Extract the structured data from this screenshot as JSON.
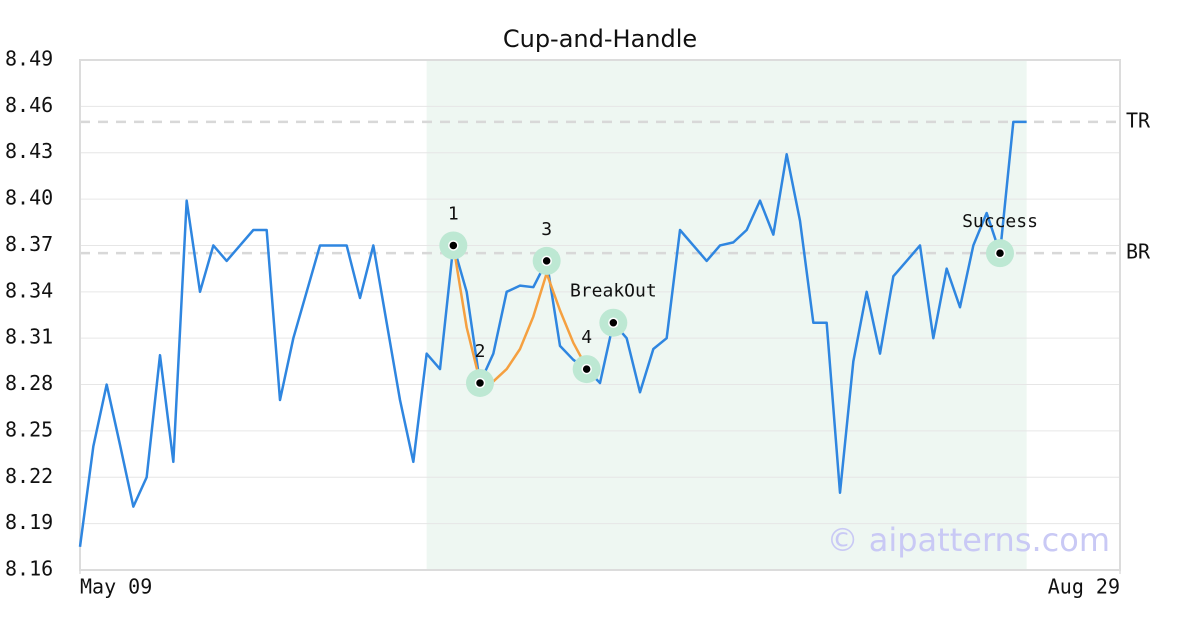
{
  "chart_data": {
    "type": "line",
    "title": "Cup-and-Handle",
    "watermark": "© aipatterns.com",
    "xlim": [
      0,
      78
    ],
    "xticks": [
      {
        "value": 0,
        "label": "May 09"
      },
      {
        "value": 78,
        "label": "Aug 29"
      }
    ],
    "ylim": [
      8.16,
      8.49
    ],
    "yticks": [
      8.16,
      8.19,
      8.22,
      8.25,
      8.28,
      8.31,
      8.34,
      8.37,
      {
        "value": 8.4,
        "label": "8.40"
      },
      8.43,
      8.46,
      8.49
    ],
    "grid": true,
    "highlight": [
      26,
      71
    ],
    "hlines": [
      {
        "value": 8.45,
        "label": "TR"
      },
      {
        "value": 8.365,
        "label": "BR"
      }
    ],
    "series": [
      {
        "color": "#2f86e0",
        "values": [
          8.175,
          8.24,
          8.28,
          8.241,
          8.201,
          8.22,
          8.299,
          8.23,
          8.399,
          8.34,
          8.37,
          8.36,
          8.37,
          8.38,
          8.38,
          8.27,
          8.31,
          8.34,
          8.37,
          8.37,
          8.37,
          8.336,
          8.37,
          8.32,
          8.27,
          8.23,
          8.3,
          8.29,
          8.37,
          8.34,
          8.281,
          8.3,
          8.34,
          8.344,
          8.343,
          8.36,
          8.305,
          8.296,
          8.29,
          8.281,
          8.32,
          8.31,
          8.275,
          8.303,
          8.31,
          8.38,
          8.37,
          8.36,
          8.37,
          8.372,
          8.38,
          8.399,
          8.377,
          8.429,
          8.386,
          8.32,
          8.32,
          8.21,
          8.295,
          8.34,
          8.3,
          8.35,
          8.36,
          8.37,
          8.31,
          8.355,
          8.33,
          8.37,
          8.391,
          8.365,
          8.45,
          8.45
        ]
      },
      {
        "color": "#f5a040",
        "values": [
          null,
          null,
          null,
          null,
          null,
          null,
          null,
          null,
          null,
          null,
          null,
          null,
          null,
          null,
          null,
          null,
          null,
          null,
          null,
          null,
          null,
          null,
          null,
          null,
          null,
          null,
          null,
          null,
          8.37,
          8.317,
          8.282,
          8.282,
          8.29,
          8.303,
          8.324,
          8.352,
          8.328,
          8.307,
          8.291,
          null,
          null,
          null,
          null,
          null,
          null,
          null,
          null,
          null,
          null,
          null,
          null,
          null,
          null,
          null,
          null,
          null,
          null,
          null,
          null,
          null,
          null,
          null,
          null,
          null,
          null,
          null,
          null,
          null,
          null,
          null,
          null,
          null
        ]
      }
    ],
    "annotations": [
      {
        "x": 28,
        "y": 8.37,
        "label": "1"
      },
      {
        "x": 30,
        "y": 8.281,
        "label": "2"
      },
      {
        "x": 35,
        "y": 8.36,
        "label": "3"
      },
      {
        "x": 38,
        "y": 8.29,
        "label": "4"
      },
      {
        "x": 40,
        "y": 8.32,
        "label": "BreakOut"
      },
      {
        "x": 69,
        "y": 8.365,
        "label": "Success"
      }
    ]
  }
}
